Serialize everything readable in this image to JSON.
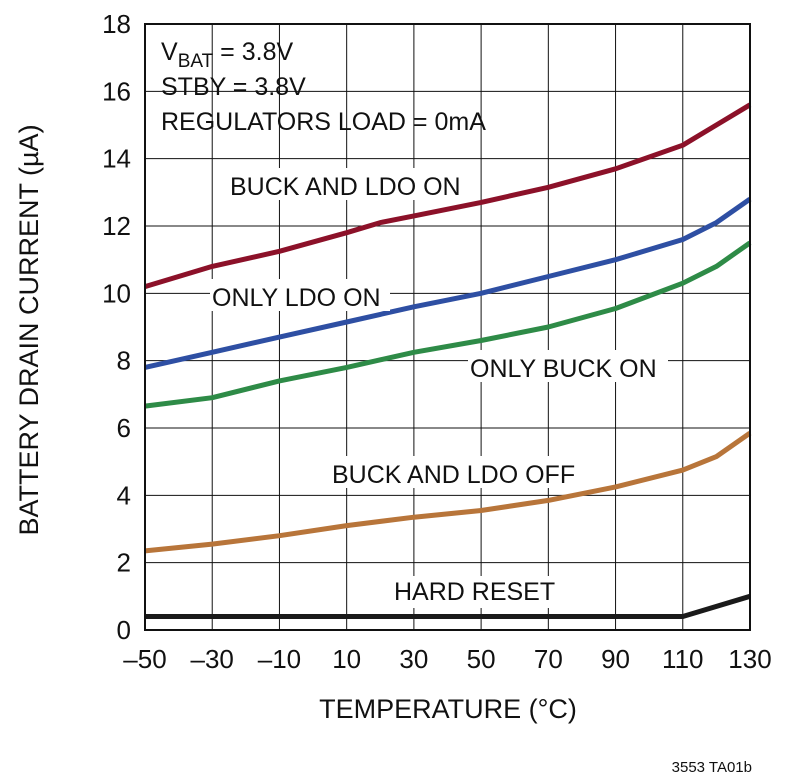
{
  "chart_data": {
    "type": "line",
    "xlabel": "TEMPERATURE (°C)",
    "ylabel": "BATTERY DRAIN CURRENT (µA)",
    "xlim": [
      -50,
      130
    ],
    "ylim": [
      0,
      18
    ],
    "x_ticks": [
      -50,
      -30,
      -10,
      10,
      30,
      50,
      70,
      90,
      110,
      130
    ],
    "x_tick_labels": [
      "–50",
      "–30",
      "–10",
      "10",
      "30",
      "50",
      "70",
      "90",
      "110",
      "130"
    ],
    "y_ticks": [
      0,
      2,
      4,
      6,
      8,
      10,
      12,
      14,
      16,
      18
    ],
    "y_tick_labels": [
      "0",
      "2",
      "4",
      "6",
      "8",
      "10",
      "12",
      "14",
      "16",
      "18"
    ],
    "grid": true,
    "conditions": {
      "vbat": {
        "main": "V",
        "sub": "BAT",
        "rest": " = 3.8V"
      },
      "stby": "STBY = 3.8V",
      "load": "REGULATORS LOAD = 0mA"
    },
    "figure_id": "3553 TA01b",
    "series": [
      {
        "name": "BUCK AND LDO ON",
        "color": "#8c1129",
        "x": [
          -50,
          -30,
          -10,
          10,
          20,
          30,
          50,
          70,
          90,
          110,
          120,
          130
        ],
        "y": [
          10.2,
          10.8,
          11.25,
          11.8,
          12.1,
          12.3,
          12.7,
          13.15,
          13.7,
          14.4,
          15.0,
          15.6
        ]
      },
      {
        "name": "ONLY LDO ON",
        "color": "#2e4fa3",
        "x": [
          -50,
          -30,
          -10,
          10,
          30,
          50,
          70,
          90,
          110,
          120,
          130
        ],
        "y": [
          7.8,
          8.25,
          8.7,
          9.15,
          9.6,
          10.0,
          10.5,
          11.0,
          11.6,
          12.1,
          12.8
        ]
      },
      {
        "name": "ONLY BUCK ON",
        "color": "#2e8b47",
        "x": [
          -50,
          -30,
          -10,
          10,
          30,
          50,
          70,
          90,
          110,
          120,
          130
        ],
        "y": [
          6.65,
          6.9,
          7.4,
          7.8,
          8.25,
          8.6,
          9.0,
          9.55,
          10.3,
          10.8,
          11.5
        ]
      },
      {
        "name": "BUCK AND LDO OFF",
        "color": "#b8753a",
        "x": [
          -50,
          -30,
          -10,
          10,
          30,
          50,
          70,
          90,
          110,
          120,
          130
        ],
        "y": [
          2.35,
          2.55,
          2.8,
          3.1,
          3.35,
          3.55,
          3.85,
          4.25,
          4.75,
          5.15,
          5.85
        ]
      },
      {
        "name": "HARD RESET",
        "color": "#1a1a1a",
        "x": [
          -50,
          110,
          130
        ],
        "y": [
          0.4,
          0.4,
          1.0
        ]
      }
    ]
  }
}
